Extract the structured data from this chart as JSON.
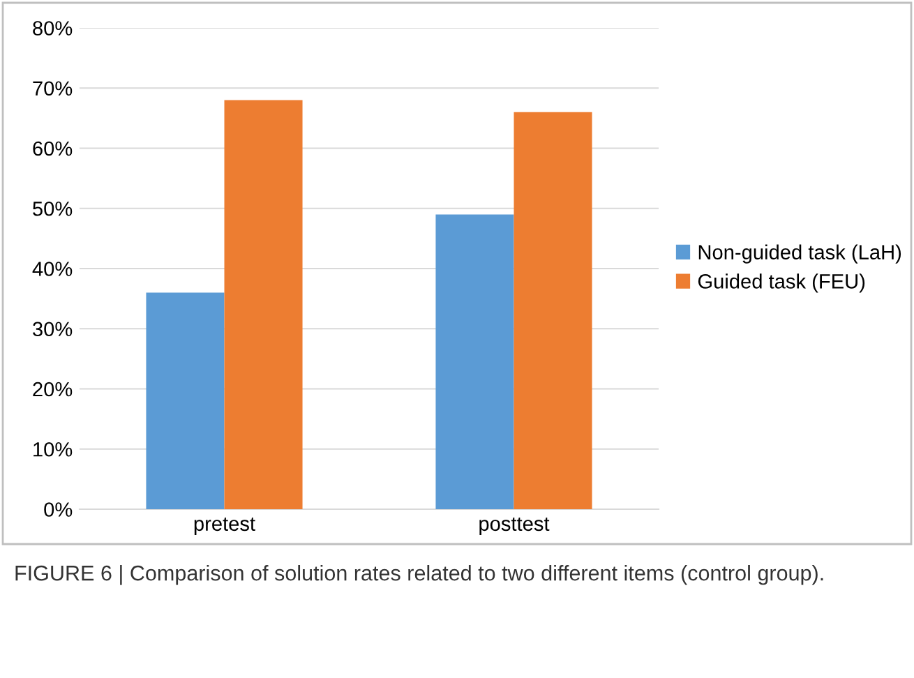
{
  "chart_data": {
    "type": "bar",
    "categories": [
      "pretest",
      "posttest"
    ],
    "series": [
      {
        "name": "Non-guided task (LaH)",
        "color": "#5b9bd5",
        "values": [
          36,
          49
        ]
      },
      {
        "name": "Guided task (FEU)",
        "color": "#ed7d31",
        "values": [
          68,
          66
        ]
      }
    ],
    "ylim": [
      0,
      80
    ],
    "yticks": [
      {
        "value": 0,
        "label": "0%"
      },
      {
        "value": 10,
        "label": "10%"
      },
      {
        "value": 20,
        "label": "20%"
      },
      {
        "value": 30,
        "label": "30%"
      },
      {
        "value": 40,
        "label": "40%"
      },
      {
        "value": 50,
        "label": "50%"
      },
      {
        "value": 60,
        "label": "60%"
      },
      {
        "value": 70,
        "label": "70%"
      },
      {
        "value": 80,
        "label": "80%"
      }
    ],
    "grid": "y",
    "legend": "right",
    "annotations": [
      "FIGURE 6 | Comparison of solution rates related to two different items (control group)."
    ]
  }
}
